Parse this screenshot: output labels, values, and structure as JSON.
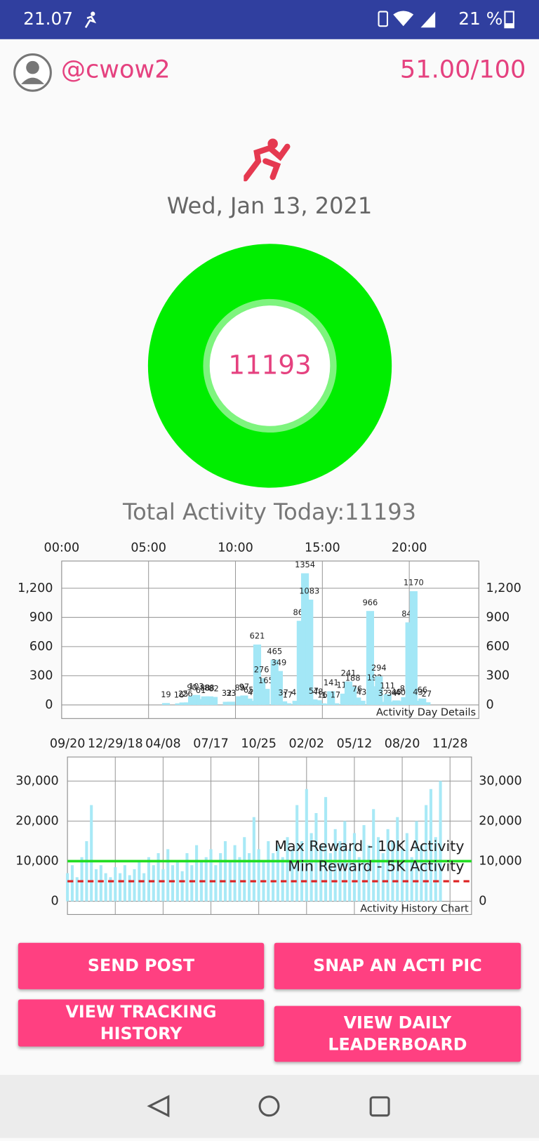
{
  "status_bar": {
    "time": "21.07",
    "battery": "21 %"
  },
  "header": {
    "username": "@cwow2",
    "score": "51.00/100"
  },
  "date": "Wed, Jan 13, 2021",
  "ring": {
    "value": 11193
  },
  "total_label": "Total Activity Today:11193",
  "chart_data": [
    {
      "type": "bar",
      "caption": "Activity Day Details",
      "color": "#a3e7f6",
      "data_labels": true,
      "grid": true,
      "x": [
        6.0,
        6.75,
        7.0,
        7.25,
        7.5,
        7.75,
        8.0,
        8.25,
        8.5,
        8.75,
        9.5,
        9.75,
        10.25,
        10.5,
        10.75,
        11.0,
        11.25,
        11.5,
        11.75,
        12.25,
        12.5,
        12.75,
        13.0,
        13.5,
        13.75,
        14.0,
        14.25,
        14.5,
        14.75,
        15.0,
        15.25,
        15.5,
        15.75,
        16.25,
        16.5,
        16.75,
        17.0,
        17.25,
        17.75,
        18.0,
        18.25,
        18.5,
        18.75,
        19.0,
        19.25,
        19.5,
        19.75,
        20.0,
        20.25,
        20.5,
        20.75,
        21.0
      ],
      "values": [
        19,
        16,
        25,
        26,
        90,
        103,
        61,
        88,
        88,
        82,
        32,
        33,
        89,
        97,
        65,
        42,
        621,
        276,
        165,
        465,
        349,
        37,
        17,
        42,
        865,
        1354,
        1083,
        57,
        48,
        16,
        12,
        141,
        17,
        116,
        241,
        188,
        76,
        43,
        966,
        192,
        294,
        32,
        111,
        34,
        46,
        40,
        80,
        849,
        1170,
        43,
        66,
        27
      ],
      "xlim": [
        0,
        24
      ],
      "xticks": [
        {
          "value": 0,
          "label": "00:00"
        },
        {
          "value": 5,
          "label": "05:00"
        },
        {
          "value": 10,
          "label": "10:00"
        },
        {
          "value": 15,
          "label": "15:00"
        },
        {
          "value": 20,
          "label": "20:00"
        }
      ],
      "ylim": [
        -140,
        1480
      ],
      "yticks": [
        0,
        300,
        600,
        900,
        {
          "value": 1200,
          "label": "1,200"
        }
      ]
    },
    {
      "type": "bar",
      "caption": "Activity History Chart",
      "color": "#a8e9f6",
      "grid": true,
      "x": [
        0,
        10,
        20,
        30,
        40,
        50,
        60,
        70,
        80,
        90,
        100,
        110,
        120,
        130,
        140,
        150,
        160,
        170,
        180,
        190,
        200,
        210,
        220,
        230,
        240,
        250,
        260,
        270,
        280,
        290,
        300,
        310,
        320,
        330,
        340,
        350,
        360,
        370,
        380,
        390,
        400,
        410,
        420,
        430,
        440,
        450,
        460,
        470,
        480,
        490,
        500,
        510,
        520,
        530,
        540,
        550,
        560,
        570,
        580,
        590,
        600,
        610,
        620,
        630,
        640,
        650,
        660,
        670,
        680,
        690,
        700,
        710,
        720,
        730,
        740,
        750,
        760,
        770,
        780
      ],
      "values": [
        7000,
        9000,
        6000,
        11000,
        15000,
        24000,
        8000,
        9000,
        7000,
        6000,
        8500,
        7000,
        9000,
        6500,
        8000,
        10000,
        7000,
        11000,
        9000,
        12000,
        8000,
        13000,
        9000,
        10000,
        7500,
        12000,
        9000,
        14000,
        10000,
        11000,
        13000,
        9000,
        12000,
        15000,
        10000,
        14000,
        11000,
        16000,
        12000,
        21000,
        13000,
        10000,
        15000,
        12000,
        14000,
        11000,
        16000,
        13000,
        24000,
        15000,
        28000,
        17000,
        22000,
        14000,
        26000,
        12000,
        18000,
        15000,
        20000,
        13000,
        17000,
        11000,
        19000,
        14000,
        23000,
        16000,
        12000,
        18000,
        15000,
        21000,
        13000,
        17000,
        11000,
        20000,
        14000,
        24000,
        28000,
        16000,
        30000
      ],
      "xlim": [
        0,
        845
      ],
      "xticks": [
        {
          "value": 0,
          "label": "09/20"
        },
        {
          "value": 100,
          "label": "12/29/18"
        },
        {
          "value": 200,
          "label": "04/08"
        },
        {
          "value": 300,
          "label": "07/17"
        },
        {
          "value": 400,
          "label": "10/25"
        },
        {
          "value": 500,
          "label": "02/02"
        },
        {
          "value": 600,
          "label": "05/12"
        },
        {
          "value": 700,
          "label": "08/20"
        },
        {
          "value": 800,
          "label": "11/28"
        }
      ],
      "ylim": [
        -3300,
        36000
      ],
      "yticks": [
        0,
        {
          "value": 10000,
          "label": "10,000"
        },
        {
          "value": 20000,
          "label": "20,000"
        },
        {
          "value": 30000,
          "label": "30,000"
        }
      ],
      "reference_lines": [
        {
          "label": "Max Reward - 10K Activity",
          "value": 10000,
          "color": "#22dd22",
          "dashed": false
        },
        {
          "label": "Min Reward - 5K Activity",
          "value": 5000,
          "color": "#dd2222",
          "dashed": true
        }
      ]
    }
  ],
  "buttons": [
    "SEND POST",
    "SNAP AN ACTI PIC",
    "VIEW TRACKING HISTORY",
    "VIEW DAILY LEADERBOARD"
  ]
}
